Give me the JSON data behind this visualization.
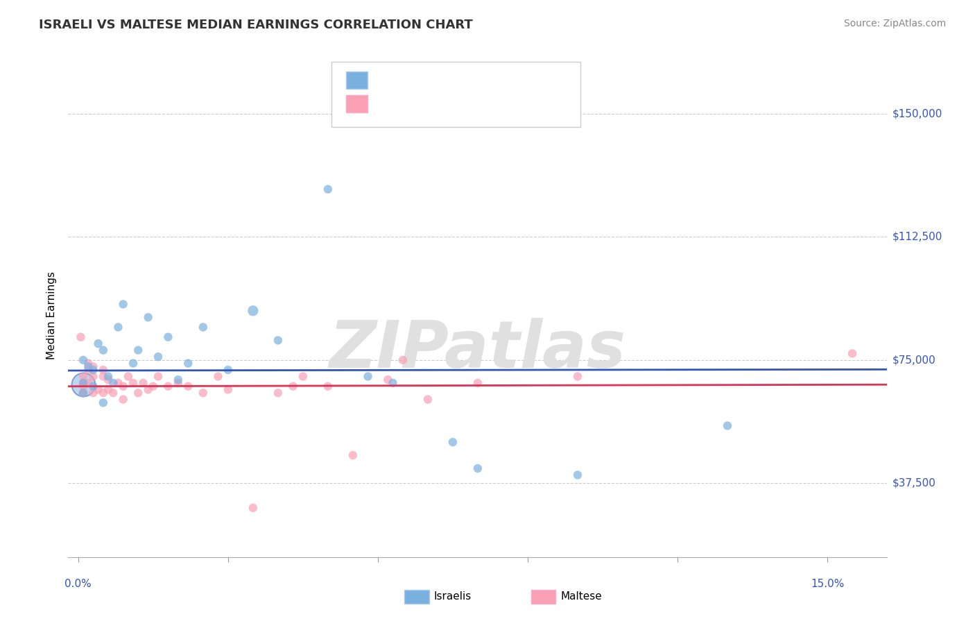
{
  "title": "ISRAELI VS MALTESE MEDIAN EARNINGS CORRELATION CHART",
  "source": "Source: ZipAtlas.com",
  "ylabel": "Median Earnings",
  "ytick_labels": [
    "$37,500",
    "$75,000",
    "$112,500",
    "$150,000"
  ],
  "ytick_values": [
    37500,
    75000,
    112500,
    150000
  ],
  "ymin": 15000,
  "ymax": 162000,
  "xmin": -0.002,
  "xmax": 0.162,
  "israeli_color": "#7ab0e0",
  "maltese_color": "#f9a0b4",
  "israeli_line_color": "#3355bb",
  "maltese_line_color": "#dd3355",
  "ytick_color": "#3355bb",
  "watermark_color": "#e0e0e0",
  "israeli_x": [
    0.001,
    0.001,
    0.001,
    0.002,
    0.003,
    0.003,
    0.004,
    0.005,
    0.005,
    0.006,
    0.007,
    0.008,
    0.009,
    0.011,
    0.012,
    0.014,
    0.016,
    0.018,
    0.02,
    0.022,
    0.025,
    0.03,
    0.035,
    0.04,
    0.05,
    0.058,
    0.063,
    0.075,
    0.08,
    0.1,
    0.13
  ],
  "israeli_y": [
    75000,
    68000,
    65000,
    73000,
    67000,
    72000,
    80000,
    78000,
    62000,
    70000,
    68000,
    85000,
    92000,
    74000,
    78000,
    88000,
    76000,
    82000,
    69000,
    74000,
    85000,
    72000,
    90000,
    81000,
    127000,
    70000,
    68000,
    50000,
    42000,
    40000,
    55000
  ],
  "israeli_sizes": [
    80,
    80,
    80,
    80,
    80,
    80,
    80,
    80,
    80,
    80,
    80,
    80,
    80,
    80,
    80,
    80,
    80,
    80,
    80,
    80,
    80,
    80,
    120,
    80,
    80,
    80,
    80,
    80,
    80,
    80,
    80
  ],
  "maltese_x": [
    0.0005,
    0.001,
    0.001,
    0.001,
    0.001,
    0.002,
    0.002,
    0.002,
    0.003,
    0.003,
    0.003,
    0.004,
    0.005,
    0.005,
    0.005,
    0.006,
    0.006,
    0.007,
    0.008,
    0.009,
    0.009,
    0.01,
    0.011,
    0.012,
    0.013,
    0.014,
    0.015,
    0.016,
    0.018,
    0.02,
    0.022,
    0.025,
    0.028,
    0.03,
    0.035,
    0.04,
    0.043,
    0.045,
    0.05,
    0.055,
    0.062,
    0.065,
    0.07,
    0.08,
    0.1,
    0.155
  ],
  "maltese_y": [
    82000,
    70000,
    68000,
    67000,
    65000,
    74000,
    72000,
    68000,
    73000,
    70000,
    65000,
    66000,
    72000,
    70000,
    65000,
    69000,
    66000,
    65000,
    68000,
    67000,
    63000,
    70000,
    68000,
    65000,
    68000,
    66000,
    67000,
    70000,
    67000,
    68000,
    67000,
    65000,
    70000,
    66000,
    30000,
    65000,
    67000,
    70000,
    67000,
    46000,
    69000,
    75000,
    63000,
    68000,
    70000,
    77000
  ],
  "maltese_sizes": [
    80,
    80,
    80,
    80,
    80,
    80,
    80,
    80,
    80,
    80,
    80,
    80,
    80,
    80,
    80,
    80,
    80,
    80,
    80,
    80,
    80,
    80,
    80,
    80,
    80,
    80,
    80,
    80,
    80,
    80,
    80,
    80,
    80,
    80,
    80,
    80,
    80,
    80,
    80,
    80,
    80,
    80,
    80,
    80,
    80,
    80
  ],
  "large_israeli_x": [
    0.001
  ],
  "large_israeli_y": [
    67500
  ],
  "large_israeli_size": 600
}
